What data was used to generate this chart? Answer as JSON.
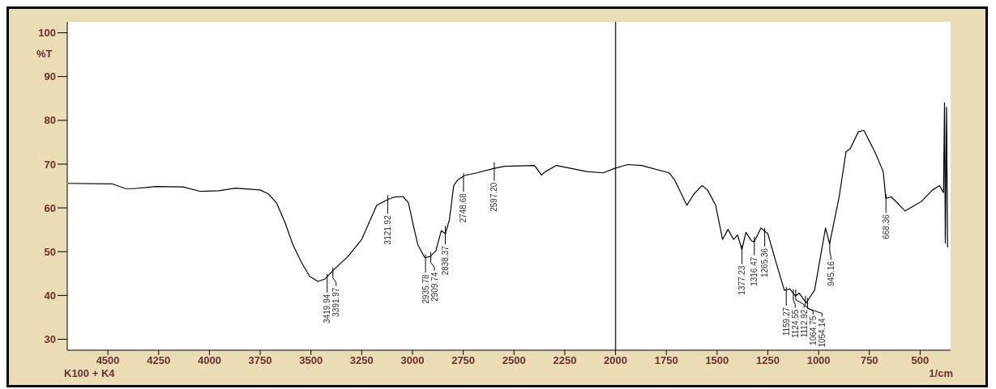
{
  "chart_data": {
    "type": "line",
    "xlabel": "1/cm",
    "ylabel": "%T",
    "x": [
      4696,
      4480,
      4412,
      4372,
      4264,
      4130,
      4048,
      3953,
      3872,
      3750,
      3710,
      3670,
      3628,
      3588,
      3547,
      3507,
      3466,
      3433,
      3385,
      3318,
      3250,
      3176,
      3122,
      3088,
      3047,
      3020,
      2993,
      2973,
      2939,
      2912,
      2885,
      2858,
      2838,
      2818,
      2797,
      2777,
      2743,
      2683,
      2601,
      2547,
      2399,
      2365,
      2345,
      2291,
      2142,
      2061,
      2007,
      1940,
      1872,
      1736,
      1709,
      1682,
      1649,
      1615,
      1574,
      1547,
      1507,
      1473,
      1446,
      1419,
      1399,
      1378,
      1358,
      1331,
      1318,
      1284,
      1250,
      1210,
      1169,
      1142,
      1115,
      1095,
      1061,
      1020,
      966,
      946,
      899,
      865,
      845,
      804,
      777,
      723,
      682,
      669,
      642,
      574,
      493,
      439,
      405,
      385,
      380,
      376,
      370,
      365
    ],
    "series": [
      {
        "color": "#000000",
        "values": [
          65.6,
          65.5,
          64.4,
          64.4,
          64.9,
          64.8,
          63.8,
          63.9,
          64.5,
          64.1,
          63.2,
          61.2,
          56.7,
          51.5,
          47.6,
          44.4,
          43.2,
          43.7,
          46.0,
          48.9,
          52.8,
          60.6,
          61.9,
          62.5,
          62.6,
          61.2,
          55.4,
          51.5,
          48.6,
          48.9,
          50.2,
          54.8,
          54.1,
          57.3,
          65.1,
          66.4,
          67.4,
          68.0,
          69.0,
          69.5,
          69.7,
          67.5,
          68.3,
          69.7,
          68.3,
          68.0,
          69.0,
          69.9,
          69.7,
          68.0,
          66.4,
          63.8,
          60.6,
          63.1,
          65.1,
          64.1,
          60.6,
          52.8,
          55.1,
          52.8,
          53.8,
          50.5,
          54.4,
          52.5,
          52.2,
          55.4,
          54.1,
          47.6,
          41.2,
          41.5,
          39.9,
          40.5,
          38.3,
          41.2,
          55.4,
          51.8,
          62.5,
          72.8,
          73.5,
          77.4,
          77.7,
          72.8,
          68.3,
          62.2,
          62.5,
          59.3,
          61.5,
          64.1,
          65.1,
          63.5,
          84,
          52,
          83,
          51
        ]
      }
    ],
    "xlim": [
      4700,
      350
    ],
    "xticks": [
      4500,
      4250,
      4000,
      3750,
      3500,
      3250,
      3000,
      2750,
      2500,
      2250,
      2000,
      1750,
      1500,
      1250,
      1000,
      750,
      500
    ],
    "ylim": [
      27.5,
      102.5
    ],
    "yticks": [
      30,
      40,
      50,
      60,
      70,
      80,
      90,
      100
    ],
    "grid": false,
    "legend": false,
    "ref_lines": [
      {
        "axis": "x",
        "value": 2000,
        "color": "#333333"
      }
    ],
    "annotations": [
      {
        "text": "3419.94",
        "x": 3419.94,
        "y": 44
      },
      {
        "text": "3391.97",
        "x": 3391.97,
        "y": 45.5
      },
      {
        "text": "3121.92",
        "x": 3121.92,
        "y": 62
      },
      {
        "text": "2935.78",
        "x": 2935.78,
        "y": 48.5
      },
      {
        "text": "2909.74",
        "x": 2909.74,
        "y": 49
      },
      {
        "text": "2838.37",
        "x": 2838.37,
        "y": 55
      },
      {
        "text": "2748.68",
        "x": 2748.68,
        "y": 67
      },
      {
        "text": "2597.20",
        "x": 2597.2,
        "y": 69.5
      },
      {
        "text": "1377.23",
        "x": 1377.23,
        "y": 50.5
      },
      {
        "text": "1316.47",
        "x": 1316.47,
        "y": 52.5
      },
      {
        "text": "1265.36",
        "x": 1265.36,
        "y": 54.5
      },
      {
        "text": "1159.27",
        "x": 1159.27,
        "y": 41
      },
      {
        "text": "1124.55",
        "x": 1124.55,
        "y": 40.5
      },
      {
        "text": "1112.92",
        "x": 1112.92,
        "y": 40.5
      },
      {
        "text": "1064.75",
        "x": 1064.75,
        "y": 39
      },
      {
        "text": "1054.14",
        "x": 1054.14,
        "y": 38.5
      },
      {
        "text": "945.16",
        "x": 945.16,
        "y": 51.5
      },
      {
        "text": "668.36",
        "x": 668.36,
        "y": 62.2
      },
      "K100 + K4"
    ]
  }
}
